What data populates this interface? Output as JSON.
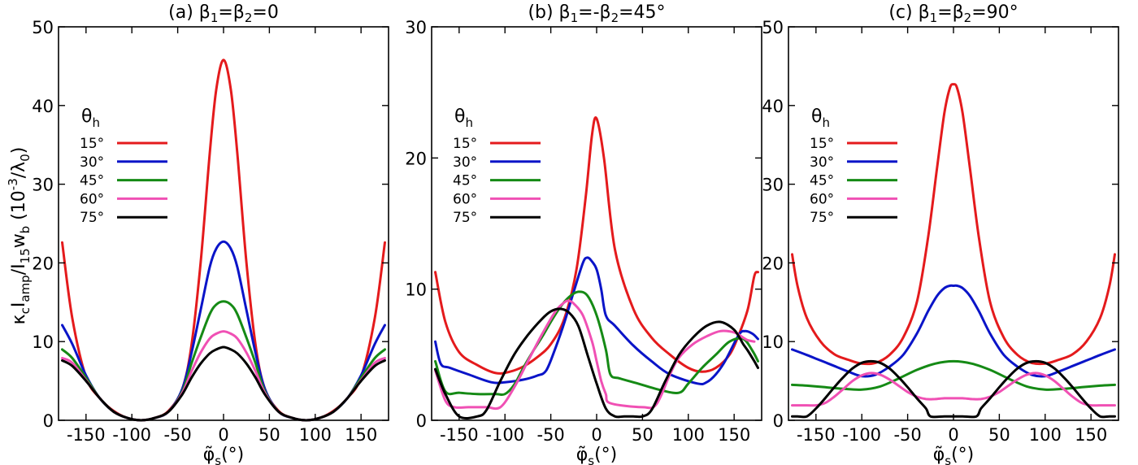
{
  "ylabel": {
    "main": "κ",
    "s1": "c",
    "m1": "I",
    "s2": "amp",
    "m2": "/I",
    "s3": "15",
    "m3": "w",
    "s4": "b",
    "m4": " (10",
    "sup": "-3",
    "m5": "/λ",
    "s5": "0",
    "m6": ")"
  },
  "xlabel": {
    "main": "φ̃",
    "sub": "s",
    "unit": "(°)"
  },
  "legend": {
    "heading": "θ",
    "heading_sub": "h",
    "labels": [
      "15°",
      "30°",
      "45°",
      "60°",
      "75°"
    ]
  },
  "colors": {
    "15": "#e41a1c",
    "30": "#0a14c8",
    "45": "#158a15",
    "60": "#f050b4",
    "75": "#000000"
  },
  "chart_data": [
    {
      "type": "line",
      "title": "(a) β1=β2=0",
      "title_parts": {
        "a": "(a) β",
        "s1": "1",
        "b": "=β",
        "s2": "2",
        "c": "=0"
      },
      "xlim": [
        -180,
        180
      ],
      "ylim": [
        0,
        50
      ],
      "xticks": [
        -150,
        -100,
        -50,
        0,
        50,
        100,
        150
      ],
      "yticks": [
        0,
        10,
        20,
        30,
        40,
        50
      ],
      "grid": false,
      "legend_position": "upper-left",
      "x": [
        -176,
        -165,
        -150,
        -135,
        -120,
        -105,
        -90,
        -75,
        -60,
        -45,
        -35,
        -25,
        -15,
        -8,
        0,
        8,
        15,
        25,
        35,
        45,
        60,
        75,
        90,
        105,
        120,
        135,
        150,
        165,
        176
      ],
      "series": [
        {
          "name": "15°",
          "color": "#e41a1c",
          "values": [
            22.6,
            13,
            5.5,
            2.8,
            1.2,
            0.3,
            0,
            0.3,
            1.2,
            4,
            9.5,
            20,
            34,
            42,
            45.8,
            42,
            34,
            20,
            9.5,
            4,
            1.2,
            0.3,
            0,
            0.3,
            1.2,
            2.8,
            5.5,
            13,
            22.6
          ]
        },
        {
          "name": "30°",
          "color": "#0a14c8",
          "values": [
            12.1,
            9.7,
            5.7,
            2.8,
            1.1,
            0.3,
            0,
            0.3,
            1.1,
            4,
            8.5,
            14,
            19.5,
            21.8,
            22.7,
            21.8,
            19.5,
            14,
            8.5,
            4,
            1.1,
            0.3,
            0,
            0.3,
            1.1,
            2.8,
            5.7,
            9.7,
            12.1
          ]
        },
        {
          "name": "45°",
          "color": "#158a15",
          "values": [
            9,
            7.9,
            5.4,
            2.8,
            1.1,
            0.3,
            0,
            0.3,
            1.1,
            3.7,
            7.2,
            10.5,
            13.5,
            14.7,
            15.1,
            14.7,
            13.5,
            10.5,
            7.2,
            3.7,
            1.1,
            0.3,
            0,
            0.3,
            1.1,
            2.8,
            5.4,
            7.9,
            9
          ]
        },
        {
          "name": "60°",
          "color": "#f050b4",
          "values": [
            7.9,
            7.3,
            5.1,
            2.8,
            1.1,
            0.3,
            0,
            0.3,
            1.1,
            3.5,
            6.2,
            8.6,
            10.4,
            11,
            11.3,
            11,
            10.4,
            8.6,
            6.2,
            3.5,
            1.1,
            0.3,
            0,
            0.3,
            1.1,
            2.8,
            5.1,
            7.3,
            7.9
          ]
        },
        {
          "name": "75°",
          "color": "#000000",
          "values": [
            7.6,
            6.9,
            5,
            2.8,
            1.1,
            0.3,
            0,
            0.3,
            1.1,
            3.3,
            5.4,
            7.2,
            8.5,
            9,
            9.3,
            9,
            8.5,
            7.2,
            5.4,
            3.3,
            1.1,
            0.3,
            0,
            0.3,
            1.1,
            2.8,
            5,
            6.9,
            7.6
          ]
        }
      ]
    },
    {
      "type": "line",
      "title": "(b) β1=-β2=45°",
      "title_parts": {
        "a": "(b) β",
        "s1": "1",
        "b": "=-β",
        "s2": "2",
        "c": "=45°"
      },
      "xlim": [
        -180,
        180
      ],
      "ylim": [
        0,
        30
      ],
      "xticks": [
        -150,
        -100,
        -50,
        0,
        50,
        100,
        150
      ],
      "yticks": [
        0,
        10,
        20,
        30
      ],
      "grid": false,
      "legend_position": "upper-left",
      "series": [
        {
          "name": "15°",
          "color": "#e41a1c",
          "x": [
            -176,
            -165,
            -150,
            -130,
            -110,
            -95,
            -80,
            -65,
            -50,
            -35,
            -22,
            -12,
            -5,
            0,
            8,
            20,
            40,
            60,
            80,
            100,
            115,
            130,
            145,
            155,
            165,
            172,
            176
          ],
          "values": [
            11.3,
            7.5,
            5.2,
            4.2,
            3.6,
            3.7,
            4.1,
            4.8,
            5.8,
            7.8,
            11.5,
            17,
            21.8,
            23,
            20,
            13,
            8.5,
            6.3,
            5,
            4,
            3.7,
            4,
            5,
            6.5,
            8.5,
            11,
            11.3
          ]
        },
        {
          "name": "30°",
          "color": "#0a14c8",
          "x": [
            -176,
            -170,
            -160,
            -140,
            -115,
            -100,
            -80,
            -65,
            -55,
            -45,
            -35,
            -25,
            -15,
            -10,
            -5,
            0,
            5,
            10,
            20,
            40,
            60,
            80,
            110,
            120,
            130,
            140,
            155,
            162,
            170,
            176
          ],
          "values": [
            6,
            4.3,
            4,
            3.5,
            2.9,
            2.9,
            3.1,
            3.4,
            3.8,
            5.5,
            7.5,
            9.8,
            12,
            12.4,
            12.1,
            11.5,
            10,
            8,
            7.2,
            5.7,
            4.5,
            3.5,
            2.8,
            2.9,
            3.5,
            4.5,
            6.5,
            6.8,
            6.6,
            6.2
          ]
        },
        {
          "name": "45°",
          "color": "#158a15",
          "x": [
            -176,
            -165,
            -150,
            -130,
            -110,
            -100,
            -90,
            -80,
            -70,
            -60,
            -50,
            -40,
            -30,
            -20,
            -10,
            0,
            10,
            15,
            25,
            45,
            70,
            90,
            100,
            115,
            130,
            145,
            160,
            170,
            176
          ],
          "values": [
            4.5,
            2.2,
            2.1,
            2,
            2,
            2,
            2.7,
            4,
            5.2,
            6.3,
            7.5,
            8.6,
            9.4,
            9.8,
            9.5,
            8,
            5.4,
            3.5,
            3.2,
            2.8,
            2.3,
            2.1,
            2.8,
            4,
            5,
            6,
            6.2,
            5.3,
            4.5
          ]
        },
        {
          "name": "60°",
          "color": "#f050b4",
          "x": [
            -176,
            -165,
            -155,
            -140,
            -120,
            -105,
            -90,
            -75,
            -60,
            -45,
            -35,
            -30,
            -25,
            -15,
            -5,
            0,
            5,
            10,
            15,
            50,
            65,
            80,
            90,
            105,
            120,
            135,
            150,
            160,
            165,
            172
          ],
          "values": [
            3.8,
            1.5,
            1,
            1,
            1,
            1,
            2.5,
            4.5,
            6.5,
            8.3,
            9,
            9.1,
            8.9,
            8,
            6,
            4.5,
            3,
            2,
            1.3,
            1,
            1.2,
            3.5,
            4.8,
            5.8,
            6.4,
            6.8,
            6.7,
            6.3,
            6.1,
            6
          ]
        },
        {
          "name": "75°",
          "color": "#000000",
          "x": [
            -176,
            -165,
            -150,
            -130,
            -120,
            -105,
            -90,
            -75,
            -60,
            -50,
            -40,
            -30,
            -20,
            -10,
            0,
            10,
            20,
            30,
            40,
            50,
            60,
            75,
            90,
            105,
            120,
            135,
            150,
            160,
            165,
            172,
            176
          ],
          "values": [
            3.9,
            2,
            0.3,
            0.3,
            0.8,
            3,
            5,
            6.5,
            7.7,
            8.3,
            8.5,
            8.2,
            7.2,
            5,
            2.8,
            0.9,
            0.3,
            0.3,
            0.3,
            0.3,
            0.8,
            3,
            5,
            6.3,
            7.2,
            7.5,
            6.9,
            5.8,
            5.3,
            4.5,
            4
          ]
        }
      ]
    },
    {
      "type": "line",
      "title": "(c) β1=β2=90°",
      "title_parts": {
        "a": "(c) β",
        "s1": "1",
        "b": "=β",
        "s2": "2",
        "c": "=90°"
      },
      "xlim": [
        -180,
        180
      ],
      "ylim": [
        0,
        50
      ],
      "xticks": [
        -150,
        -100,
        -50,
        0,
        50,
        100,
        150
      ],
      "yticks": [
        0,
        10,
        20,
        30,
        40,
        50
      ],
      "grid": false,
      "legend_position": "upper-left",
      "series": [
        {
          "name": "15°",
          "color": "#e41a1c",
          "x": [
            -176,
            -170,
            -160,
            -145,
            -130,
            -115,
            -100,
            -85,
            -70,
            -55,
            -40,
            -28,
            -18,
            -10,
            -4,
            0,
            4,
            10,
            18,
            28,
            40,
            55,
            70,
            85,
            100,
            115,
            130,
            145,
            160,
            170,
            176
          ],
          "values": [
            21.1,
            17,
            13,
            10,
            8.4,
            7.7,
            7.2,
            7.3,
            8.3,
            10.5,
            15,
            23,
            32,
            39,
            42.2,
            42.7,
            42.2,
            39,
            32,
            23,
            15,
            10.5,
            8.3,
            7.3,
            7.2,
            7.7,
            8.4,
            10,
            13,
            17,
            21.1
          ]
        },
        {
          "name": "30°",
          "color": "#0a14c8",
          "x": [
            -176,
            -160,
            -145,
            -130,
            -115,
            -100,
            -85,
            -70,
            -55,
            -40,
            -28,
            -18,
            -10,
            -4,
            0,
            4,
            10,
            18,
            28,
            40,
            55,
            70,
            85,
            100,
            115,
            130,
            145,
            160,
            176
          ],
          "values": [
            9,
            8.3,
            7.6,
            6.9,
            6.2,
            5.6,
            5.8,
            6.8,
            8.3,
            11,
            13.8,
            15.8,
            16.8,
            17.1,
            17.1,
            17.1,
            16.8,
            15.8,
            13.8,
            11,
            8.3,
            6.8,
            5.8,
            5.6,
            6.2,
            6.9,
            7.6,
            8.3,
            9
          ]
        },
        {
          "name": "45°",
          "color": "#158a15",
          "x": [
            -176,
            -160,
            -140,
            -120,
            -100,
            -80,
            -60,
            -40,
            -20,
            0,
            20,
            40,
            60,
            80,
            100,
            120,
            140,
            160,
            176
          ],
          "values": [
            4.5,
            4.4,
            4.2,
            4,
            3.9,
            4.3,
            5.3,
            6.4,
            7.2,
            7.5,
            7.2,
            6.4,
            5.3,
            4.3,
            3.9,
            4,
            4.2,
            4.4,
            4.5
          ]
        },
        {
          "name": "60°",
          "color": "#f050b4",
          "x": [
            -176,
            -160,
            -150,
            -140,
            -130,
            -120,
            -110,
            -100,
            -90,
            -80,
            -70,
            -60,
            -50,
            -40,
            -30,
            -20,
            -10,
            0,
            10,
            20,
            30,
            40,
            50,
            60,
            70,
            80,
            90,
            100,
            110,
            120,
            130,
            140,
            150,
            160,
            176
          ],
          "values": [
            1.9,
            1.9,
            1.9,
            2.2,
            3,
            4,
            5,
            5.7,
            6,
            5.8,
            5.2,
            4.4,
            3.6,
            3,
            2.7,
            2.7,
            2.8,
            2.8,
            2.8,
            2.7,
            2.7,
            3,
            3.6,
            4.4,
            5.2,
            5.8,
            6,
            5.7,
            5,
            4,
            3,
            2.2,
            1.9,
            1.9,
            1.9
          ]
        },
        {
          "name": "75°",
          "color": "#000000",
          "x": [
            -176,
            -170,
            -160,
            -150,
            -140,
            -130,
            -120,
            -110,
            -100,
            -90,
            -80,
            -70,
            -60,
            -50,
            -40,
            -30,
            -25,
            -10,
            0,
            10,
            25,
            30,
            40,
            50,
            60,
            70,
            80,
            90,
            100,
            110,
            120,
            130,
            140,
            150,
            160,
            170,
            176
          ],
          "values": [
            0.5,
            0.5,
            0.5,
            1.5,
            2.8,
            4.2,
            5.5,
            6.6,
            7.3,
            7.5,
            7.3,
            6.6,
            5.5,
            4.2,
            2.8,
            1.5,
            0.5,
            0.5,
            0.5,
            0.5,
            0.5,
            1.5,
            2.8,
            4.2,
            5.5,
            6.6,
            7.3,
            7.5,
            7.3,
            6.6,
            5.5,
            4.2,
            2.8,
            1.5,
            0.5,
            0.5,
            0.5
          ]
        }
      ]
    }
  ]
}
